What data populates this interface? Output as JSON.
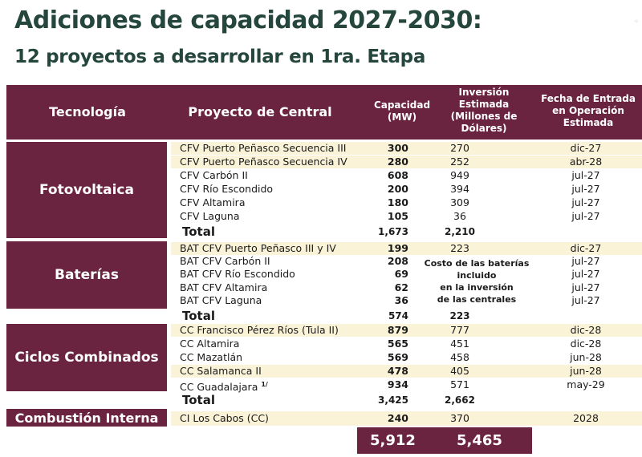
{
  "title": "Adiciones de capacidad 2027-2030:",
  "subtitle": "12 proyectos a desarrollar en 1ra. Etapa",
  "headers": {
    "tecnologia": "Tecnología",
    "proyecto": "Proyecto de Central",
    "capacidad_1": "Capacidad",
    "capacidad_2": "(MW)",
    "inversion_1": "Inversión",
    "inversion_2": "Estimada",
    "inversion_3": "(Millones de",
    "inversion_4": "Dólares)",
    "fecha_1": "Fecha de Entrada",
    "fecha_2": "en Operación",
    "fecha_3": "Estimada"
  },
  "groups": {
    "fotovoltaica": {
      "label": "Fotovoltaica",
      "rows": [
        {
          "name": "CFV Puerto Peñasco Secuencia III",
          "cap": "300",
          "inv": "270",
          "date": "dic-27"
        },
        {
          "name": "CFV Puerto Peñasco Secuencia IV",
          "cap": "280",
          "inv": "252",
          "date": "abr-28"
        },
        {
          "name": "CFV Carbón II",
          "cap": "608",
          "inv": "949",
          "date": "jul-27"
        },
        {
          "name": "CFV Río Escondido",
          "cap": "200",
          "inv": "394",
          "date": "jul-27"
        },
        {
          "name": "CFV Altamira",
          "cap": "180",
          "inv": "309",
          "date": "jul-27"
        },
        {
          "name": "CFV Laguna",
          "cap": "105",
          "inv": "36",
          "date": "jul-27"
        }
      ],
      "total_label": "Total",
      "total_cap": "1,673",
      "total_inv": "2,210"
    },
    "baterias": {
      "label": "Baterías",
      "rows": [
        {
          "name": "BAT CFV Puerto Peñasco III y IV",
          "cap": "199",
          "inv": "223",
          "date": "dic-27"
        },
        {
          "name": "BAT CFV Carbón II",
          "cap": "208",
          "inv": "",
          "date": "jul-27"
        },
        {
          "name": "BAT CFV Río Escondido",
          "cap": "69",
          "inv": "",
          "date": "jul-27"
        },
        {
          "name": "BAT CFV Altamira",
          "cap": "62",
          "inv": "",
          "date": "jul-27"
        },
        {
          "name": "BAT CFV Laguna",
          "cap": "36",
          "inv": "",
          "date": "jul-27"
        }
      ],
      "note_1": "Costo de las baterías",
      "note_2": "incluido",
      "note_3": "en la inversión",
      "note_4": "de las centrales",
      "total_label": "Total",
      "total_cap": "574",
      "total_inv": "223"
    },
    "ciclos": {
      "label": "Ciclos Combinados",
      "rows": [
        {
          "name": "CC Francisco Pérez Ríos (Tula II)",
          "cap": "879",
          "inv": "777",
          "date": "dic-28"
        },
        {
          "name": "CC Altamira",
          "cap": "565",
          "inv": "451",
          "date": "dic-28"
        },
        {
          "name": "CC Mazatlán",
          "cap": "569",
          "inv": "458",
          "date": "jun-28"
        },
        {
          "name": "CC Salamanca II",
          "cap": "478",
          "inv": "405",
          "date": "jun-28"
        },
        {
          "name": "CC Guadalajara",
          "sup": "1/",
          "cap": "934",
          "inv": "571",
          "date": "may-29"
        }
      ],
      "total_label": "Total",
      "total_cap": "3,425",
      "total_inv": "2,662"
    },
    "combustion": {
      "label": "Combustión Interna",
      "rows": [
        {
          "name": "CI Los Cabos (CC)",
          "cap": "240",
          "inv": "370",
          "date": "2028"
        }
      ]
    }
  },
  "grand_total": {
    "cap": "5,912",
    "inv": "5,465"
  },
  "colors": {
    "header": "#6b2440",
    "title": "#24463d",
    "row_highlight": "#fbf3d7"
  }
}
